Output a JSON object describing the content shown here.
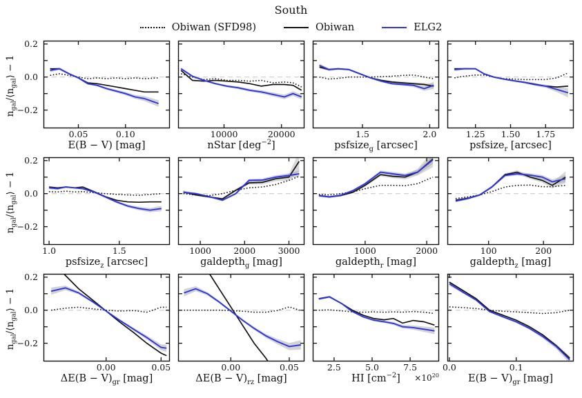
{
  "title": "South",
  "colors": {
    "background": "#ffffff",
    "axis": "#111111",
    "black_line": "#111111",
    "blue_line": "#2b35dd",
    "band": "#a8a8a8",
    "zero_line": "#cccccc"
  },
  "chart_data": {
    "type": "line",
    "title": "South",
    "ylabel": "n_{gal}/⟨n_{gal}⟩ − 1",
    "ylim": [
      -0.31,
      0.22
    ],
    "yticks": [
      -0.2,
      -0.1,
      0,
      0.1,
      0.2
    ],
    "labeled_yticks": [
      {
        "v": 0.2,
        "label": "0.2"
      },
      {
        "v": 0,
        "label": "0.0"
      },
      {
        "v": -0.2,
        "label": "−0.2"
      }
    ],
    "legend_position": "top center",
    "grid": false,
    "series_defs": [
      {
        "key": "sfd98",
        "name": "Obiwan (SFD98)",
        "style": "dotted",
        "color": "#111111"
      },
      {
        "key": "obiwan",
        "name": "Obiwan",
        "style": "solid",
        "color": "#111111"
      },
      {
        "key": "elg2",
        "name": "ELG2",
        "style": "solid",
        "color": "#2b35dd"
      }
    ],
    "panels": [
      {
        "key": "ebv",
        "xlabel": "E(B − V) [mag]",
        "xlim": [
          0.013,
          0.147
        ],
        "xticks": [
          0.05,
          0.1
        ],
        "xtick_labels": [
          "0.05",
          "0.10"
        ],
        "x": [
          0.02,
          0.03,
          0.04,
          0.05,
          0.06,
          0.07,
          0.08,
          0.09,
          0.1,
          0.11,
          0.12,
          0.135
        ],
        "sfd98": [
          0.01,
          0.02,
          0.01,
          0,
          -0.01,
          -0.005,
          -0.01,
          -0.005,
          -0.01,
          -0.005,
          -0.01,
          -0.005
        ],
        "obiwan": [
          0.05,
          0.05,
          0.02,
          -0.005,
          -0.035,
          -0.04,
          -0.05,
          -0.06,
          -0.07,
          -0.08,
          -0.09,
          -0.09
        ],
        "elg2": [
          0.04,
          0.05,
          0.02,
          -0.005,
          -0.04,
          -0.05,
          -0.07,
          -0.085,
          -0.1,
          -0.12,
          -0.13,
          -0.16
        ],
        "band": [
          0.01,
          0.008,
          0.006,
          0.006,
          0.006,
          0.007,
          0.008,
          0.009,
          0.01,
          0.012,
          0.015,
          0.02
        ]
      },
      {
        "key": "nstar",
        "xlabel": "nStar [deg^{−2}]",
        "xlim": [
          2000,
          24000
        ],
        "xticks": [
          10000,
          20000
        ],
        "xtick_labels": [
          "10000",
          "20000"
        ],
        "x": [
          2500,
          4500,
          6500,
          8500,
          10500,
          12500,
          14500,
          16500,
          18500,
          20500,
          22000,
          23500
        ],
        "sfd98": [
          0.02,
          0,
          -0.015,
          -0.01,
          -0.02,
          -0.02,
          -0.025,
          -0.02,
          -0.035,
          -0.03,
          -0.035,
          -0.06
        ],
        "obiwan": [
          0.04,
          -0.02,
          -0.025,
          -0.02,
          -0.025,
          -0.03,
          -0.04,
          -0.055,
          -0.045,
          -0.045,
          -0.05,
          -0.08
        ],
        "elg2": [
          0.05,
          0.005,
          -0.02,
          -0.04,
          -0.055,
          -0.065,
          -0.08,
          -0.09,
          -0.105,
          -0.12,
          -0.1,
          -0.12
        ],
        "band": [
          0.008,
          0.006,
          0.006,
          0.006,
          0.007,
          0.008,
          0.009,
          0.01,
          0.012,
          0.014,
          0.014,
          0.016
        ]
      },
      {
        "key": "psfsize_g",
        "xlabel": "psfsize_{g} [arcsec]",
        "xlim": [
          1.13,
          2.07
        ],
        "xticks": [
          1.5,
          2.0
        ],
        "xtick_labels": [
          "1.5",
          "2.0"
        ],
        "x": [
          1.18,
          1.25,
          1.32,
          1.4,
          1.48,
          1.56,
          1.64,
          1.72,
          1.8,
          1.88,
          1.96,
          2.03
        ],
        "sfd98": [
          0,
          -0.012,
          -0.008,
          0,
          0,
          0,
          0.002,
          0.005,
          0.01,
          0.012,
          0,
          -0.01
        ],
        "obiwan": [
          0.06,
          0.045,
          0.05,
          0.045,
          0.02,
          -0.005,
          -0.02,
          -0.03,
          -0.035,
          -0.04,
          -0.045,
          -0.055
        ],
        "elg2": [
          0.07,
          0.045,
          0.05,
          0.045,
          0.02,
          -0.005,
          -0.025,
          -0.04,
          -0.045,
          -0.05,
          -0.07,
          -0.05
        ],
        "band": [
          0.012,
          0.008,
          0.006,
          0.005,
          0.005,
          0.005,
          0.006,
          0.007,
          0.008,
          0.01,
          0.014,
          0.022
        ],
        "obiwan_band": [
          0.008,
          0.006,
          0.005,
          0.005,
          0.005,
          0.005,
          0.005,
          0.006,
          0.007,
          0.008,
          0.01,
          0.015
        ]
      },
      {
        "key": "psfsize_r",
        "xlabel": "psfsize_{r} [arcsec]",
        "xlim": [
          1.05,
          1.95
        ],
        "xticks": [
          1.25,
          1.5,
          1.75
        ],
        "xtick_labels": [
          "1.25",
          "1.50",
          "1.75"
        ],
        "x": [
          1.1,
          1.17,
          1.25,
          1.31,
          1.38,
          1.45,
          1.52,
          1.6,
          1.67,
          1.75,
          1.83,
          1.91
        ],
        "sfd98": [
          -0.005,
          0.005,
          0.012,
          0.012,
          0,
          -0.01,
          -0.012,
          -0.015,
          -0.015,
          -0.015,
          -0.005,
          0.025
        ],
        "obiwan": [
          0.05,
          0.05,
          0.05,
          0.02,
          0,
          -0.012,
          -0.022,
          -0.032,
          -0.042,
          -0.055,
          -0.06,
          -0.055
        ],
        "elg2": [
          0.045,
          0.05,
          0.05,
          0.02,
          0,
          -0.012,
          -0.022,
          -0.032,
          -0.045,
          -0.055,
          -0.075,
          -0.095
        ],
        "band": [
          0.01,
          0.007,
          0.005,
          0.005,
          0.005,
          0.005,
          0.006,
          0.007,
          0.008,
          0.01,
          0.016,
          0.028
        ]
      },
      {
        "key": "psfsize_z",
        "xlabel": "psfsize_{z} [arcsec]",
        "xlim": [
          0.96,
          1.86
        ],
        "xticks": [
          1.0,
          1.5
        ],
        "xtick_labels": [
          "1.0",
          "1.5"
        ],
        "x": [
          1.0,
          1.06,
          1.12,
          1.18,
          1.24,
          1.32,
          1.4,
          1.48,
          1.56,
          1.64,
          1.72,
          1.8
        ],
        "sfd98": [
          0.012,
          0.01,
          0.015,
          0.01,
          0.012,
          0.006,
          0,
          -0.004,
          -0.008,
          -0.01,
          -0.005,
          0
        ],
        "obiwan": [
          0.04,
          0.035,
          0.04,
          0.035,
          0.04,
          0.012,
          -0.018,
          -0.04,
          -0.05,
          -0.052,
          -0.05,
          -0.05
        ],
        "elg2": [
          0.035,
          0.03,
          0.04,
          0.035,
          0.03,
          0.01,
          -0.02,
          -0.05,
          -0.075,
          -0.09,
          -0.1,
          -0.09
        ],
        "band": [
          0.008,
          0.006,
          0.005,
          0.005,
          0.005,
          0.005,
          0.006,
          0.007,
          0.009,
          0.011,
          0.013,
          0.016
        ]
      },
      {
        "key": "galdepth_g",
        "xlabel": "galdepth_{g} [mag]",
        "xlim": [
          500,
          3350
        ],
        "xticks": [
          1000,
          2000,
          3000
        ],
        "xtick_labels": [
          "1000",
          "2000",
          "3000"
        ],
        "x": [
          620,
          900,
          1200,
          1500,
          1800,
          2100,
          2400,
          2700,
          3000,
          3230
        ],
        "sfd98": [
          0,
          -0.008,
          -0.012,
          0,
          0.02,
          0.035,
          0.04,
          0.055,
          0.08,
          0.105
        ],
        "obiwan": [
          0.01,
          -0.008,
          -0.02,
          -0.032,
          0.02,
          0.065,
          0.068,
          0.09,
          0.1,
          0.195
        ],
        "elg2": [
          0.008,
          0,
          -0.018,
          -0.04,
          0,
          0.08,
          0.082,
          0.1,
          0.11,
          0.12
        ],
        "band": [
          0.008,
          0.006,
          0.006,
          0.006,
          0.007,
          0.008,
          0.009,
          0.011,
          0.013,
          0.02
        ],
        "obiwan_band": [
          0.01,
          0.007,
          0.006,
          0.006,
          0.008,
          0.01,
          0.012,
          0.015,
          0.02,
          0.06
        ]
      },
      {
        "key": "galdepth_r",
        "xlabel": "galdepth_{r} [mag]",
        "xlim": [
          150,
          2200
        ],
        "xticks": [
          1000,
          2000
        ],
        "xtick_labels": [
          "1000",
          "2000"
        ],
        "x": [
          250,
          420,
          600,
          800,
          1000,
          1250,
          1450,
          1650,
          1850,
          2100
        ],
        "sfd98": [
          -0.005,
          -0.008,
          0,
          0.01,
          0.03,
          0.05,
          0.05,
          0.048,
          0.06,
          0.1
        ],
        "obiwan": [
          -0.012,
          -0.02,
          -0.012,
          0.008,
          0.05,
          0.115,
          0.105,
          0.1,
          0.13,
          0.21
        ],
        "elg2": [
          -0.012,
          -0.02,
          -0.01,
          0.018,
          0.06,
          0.13,
          0.12,
          0.11,
          0.13,
          0.205
        ],
        "band": [
          0.007,
          0.006,
          0.006,
          0.006,
          0.008,
          0.01,
          0.011,
          0.012,
          0.015,
          0.025
        ],
        "obiwan_band": [
          0.007,
          0.006,
          0.006,
          0.006,
          0.008,
          0.01,
          0.012,
          0.014,
          0.02,
          0.05
        ]
      },
      {
        "key": "galdepth_z",
        "xlabel": "galdepth_{z} [mag]",
        "xlim": [
          25,
          255
        ],
        "xticks": [
          100,
          200
        ],
        "xtick_labels": [
          "100",
          "200"
        ],
        "x": [
          40,
          62,
          84,
          106,
          130,
          152,
          176,
          198,
          216,
          240
        ],
        "sfd98": [
          -0.03,
          -0.02,
          -0.008,
          0.012,
          0.04,
          0.05,
          0.052,
          0.042,
          0.042,
          0.05
        ],
        "obiwan": [
          -0.04,
          -0.028,
          -0.008,
          0.04,
          0.115,
          0.13,
          0.1,
          0.08,
          0.05,
          0.1
        ],
        "elg2": [
          -0.045,
          -0.03,
          -0.008,
          0.04,
          0.11,
          0.12,
          0.112,
          0.1,
          0.072,
          0.09
        ],
        "band": [
          0.008,
          0.006,
          0.006,
          0.007,
          0.009,
          0.01,
          0.011,
          0.012,
          0.014,
          0.022
        ],
        "obiwan_band": [
          0.008,
          0.006,
          0.006,
          0.007,
          0.009,
          0.011,
          0.012,
          0.014,
          0.018,
          0.035
        ]
      },
      {
        "key": "debv_gr",
        "xlabel": "ΔE(B − V)_{gr} [mag]",
        "xlim": [
          -0.057,
          0.058
        ],
        "xticks": [
          0.0,
          0.05
        ],
        "xtick_labels": [
          "0.00",
          "0.05"
        ],
        "x": [
          -0.05,
          -0.037,
          -0.025,
          -0.012,
          0.0,
          0.012,
          0.025,
          0.037,
          0.05,
          0.055
        ],
        "sfd98": [
          0,
          0.012,
          0.018,
          0.008,
          0,
          -0.005,
          -0.002,
          -0.012,
          0.018,
          0.018
        ],
        "obiwan": [
          0.3,
          0.21,
          0.13,
          0.06,
          -0.005,
          -0.07,
          -0.135,
          -0.2,
          -0.26,
          -0.275
        ],
        "elg2": [
          0.115,
          0.135,
          0.105,
          0.05,
          -0.005,
          -0.06,
          -0.115,
          -0.165,
          -0.225,
          -0.23
        ],
        "band": [
          0.022,
          0.014,
          0.009,
          0.007,
          0.006,
          0.007,
          0.009,
          0.012,
          0.018,
          0.022
        ]
      },
      {
        "key": "debv_rz",
        "xlabel": "ΔE(B − V)_{rz} [mag]",
        "xlim": [
          -0.045,
          0.063
        ],
        "xticks": [
          0.0,
          0.05
        ],
        "xtick_labels": [
          "0.00",
          "0.05"
        ],
        "x": [
          -0.04,
          -0.03,
          -0.02,
          -0.01,
          0.0,
          0.01,
          0.02,
          0.03,
          0.04,
          0.05,
          0.06
        ],
        "sfd98": [
          0,
          0,
          0,
          0,
          -0.002,
          -0.006,
          -0.012,
          -0.012,
          -0.002,
          0.02,
          -0.003
        ],
        "obiwan": [
          0.46,
          0.35,
          0.24,
          0.13,
          0.02,
          -0.09,
          -0.2,
          -0.29,
          -0.4,
          -0.5,
          -0.6
        ],
        "elg2": [
          0.105,
          0.13,
          0.1,
          0.05,
          -0.005,
          -0.06,
          -0.11,
          -0.155,
          -0.19,
          -0.22,
          -0.21
        ],
        "band": [
          0.022,
          0.015,
          0.01,
          0.007,
          0.006,
          0.007,
          0.009,
          0.012,
          0.016,
          0.022,
          0.028
        ]
      },
      {
        "key": "hi",
        "xlabel": "HI [cm^{−2}]",
        "offset_text": "×10^{20}",
        "xlim": [
          1.1,
          9.4
        ],
        "xticks": [
          2.5,
          5.0,
          7.5
        ],
        "xtick_labels": [
          "2.5",
          "5.0",
          "7.5"
        ],
        "x": [
          1.5,
          2.2,
          3.0,
          3.7,
          4.4,
          5.1,
          5.8,
          6.4,
          7.0,
          7.7,
          8.4,
          9.1
        ],
        "sfd98": [
          0,
          0.002,
          -0.004,
          -0.01,
          -0.012,
          -0.01,
          -0.012,
          -0.01,
          -0.012,
          -0.008,
          -0.012,
          -0.02
        ],
        "obiwan": [
          0.07,
          0.082,
          0.04,
          0,
          -0.03,
          -0.05,
          -0.058,
          -0.05,
          -0.078,
          -0.062,
          -0.07,
          -0.09
        ],
        "elg2": [
          0.068,
          0.08,
          0.04,
          -0.008,
          -0.04,
          -0.06,
          -0.07,
          -0.08,
          -0.1,
          -0.105,
          -0.115,
          -0.125
        ],
        "band": [
          0.006,
          0.005,
          0.005,
          0.005,
          0.006,
          0.007,
          0.008,
          0.009,
          0.011,
          0.013,
          0.016,
          0.02
        ]
      },
      {
        "key": "ebv_gr",
        "xlabel": "E(B − V)_{gr} [mag]",
        "xlim": [
          -0.003,
          0.186
        ],
        "xticks": [
          0.0,
          0.1
        ],
        "xtick_labels": [
          "0.0",
          "0.1"
        ],
        "x": [
          0.0,
          0.02,
          0.04,
          0.06,
          0.08,
          0.1,
          0.12,
          0.14,
          0.16,
          0.18
        ],
        "sfd98": [
          0.02,
          0.016,
          0.01,
          0,
          -0.006,
          -0.01,
          -0.015,
          -0.02,
          -0.015,
          0
        ],
        "obiwan": [
          0.17,
          0.12,
          0.07,
          0,
          -0.03,
          -0.06,
          -0.1,
          -0.15,
          -0.215,
          -0.29
        ],
        "elg2": [
          0.16,
          0.11,
          0.062,
          -0.008,
          -0.04,
          -0.07,
          -0.11,
          -0.16,
          -0.22,
          -0.3
        ],
        "band": [
          0.012,
          0.008,
          0.006,
          0.006,
          0.006,
          0.007,
          0.008,
          0.011,
          0.015,
          0.022
        ]
      }
    ]
  }
}
